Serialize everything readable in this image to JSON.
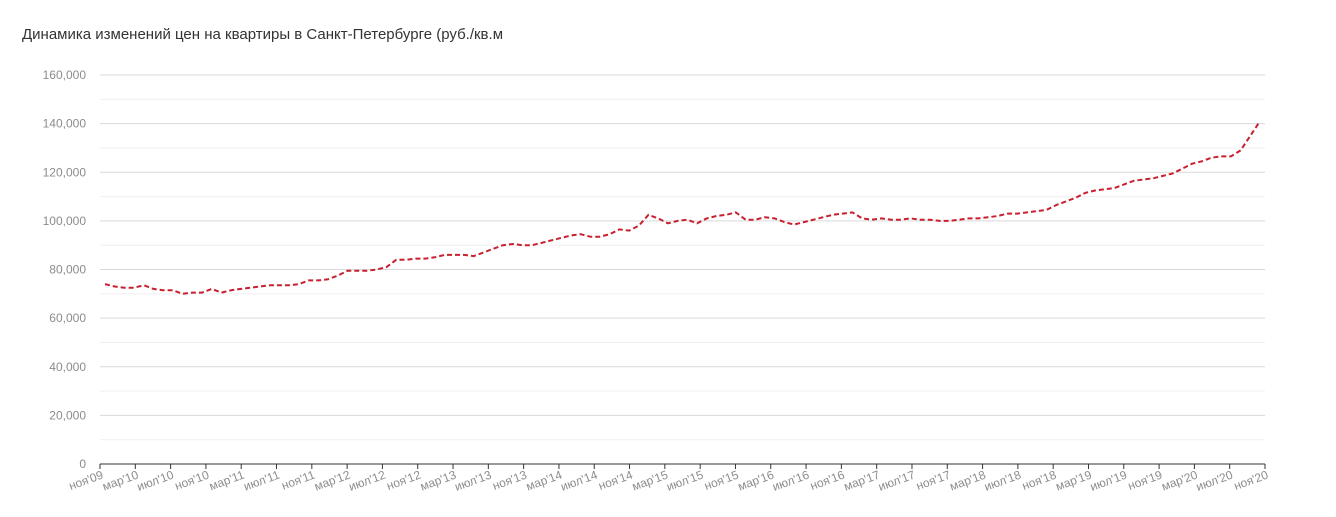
{
  "chart_data": {
    "type": "line",
    "title": "Динамика изменений цен на квартиры в Санкт-Петербурге (руб./кв.м",
    "xlabel": "",
    "ylabel": "",
    "ylim": [
      0,
      160000
    ],
    "yticks": [
      "0",
      "20,000",
      "40,000",
      "60,000",
      "80,000",
      "100,000",
      "120,000",
      "140,000",
      "160,000"
    ],
    "ytick_values": [
      0,
      20000,
      40000,
      60000,
      80000,
      100000,
      120000,
      140000,
      160000
    ],
    "grid": true,
    "line_style": "dashed",
    "colors": {
      "line": "#c8202f",
      "grid": "#d9d9d9",
      "axis": "#333333",
      "tick_text": "#8c8c8c"
    },
    "x_start": "ноя'09",
    "x_end": "ноя'20",
    "xticks": [
      "ноя'09",
      "мар'10",
      "июл'10",
      "ноя'10",
      "мар'11",
      "июл'11",
      "ноя'11",
      "мар'12",
      "июл'12",
      "ноя'12",
      "мар'13",
      "июл'13",
      "ноя'13",
      "мар'14",
      "июл'14",
      "ноя'14",
      "мар'15",
      "июл'15",
      "ноя'15",
      "мар'16",
      "июл'16",
      "ноя'16",
      "мар'17",
      "июл'17",
      "ноя'17",
      "мар'18",
      "июл'18",
      "ноя'18",
      "мар'19",
      "июл'19",
      "ноя'19",
      "мар'20",
      "июл'20",
      "ноя'20"
    ],
    "series": [
      {
        "values": [
          74000,
          73000,
          72500,
          72500,
          73500,
          72000,
          71500,
          71500,
          70000,
          70500,
          70500,
          72000,
          70500,
          71500,
          72000,
          72500,
          73000,
          73500,
          73500,
          73500,
          74000,
          75500,
          75500,
          76000,
          77500,
          79500,
          79500,
          79500,
          80000,
          81000,
          84000,
          84000,
          84500,
          84500,
          85000,
          86000,
          86000,
          86000,
          85500,
          87000,
          88500,
          90000,
          90500,
          90000,
          90000,
          91000,
          92000,
          93000,
          94000,
          94500,
          93500,
          93500,
          94500,
          96500,
          96000,
          98000,
          102500,
          101000,
          99000,
          100000,
          100500,
          99000,
          101000,
          102000,
          102500,
          103500,
          100500,
          100500,
          101500,
          101000,
          99500,
          98500,
          99500,
          100500,
          101500,
          102500,
          103000,
          103500,
          101000,
          100500,
          101000,
          100500,
          100500,
          101000,
          100500,
          100500,
          100000,
          100000,
          100500,
          101000,
          101000,
          101500,
          102000,
          103000,
          103000,
          103500,
          104000,
          104500,
          106500,
          108000,
          109500,
          111500,
          112500,
          113000,
          113500,
          115000,
          116500,
          117000,
          117500,
          118500,
          119500,
          121500,
          123500,
          124500,
          126000,
          126500,
          126500,
          129000,
          135000,
          141000
        ]
      }
    ]
  }
}
